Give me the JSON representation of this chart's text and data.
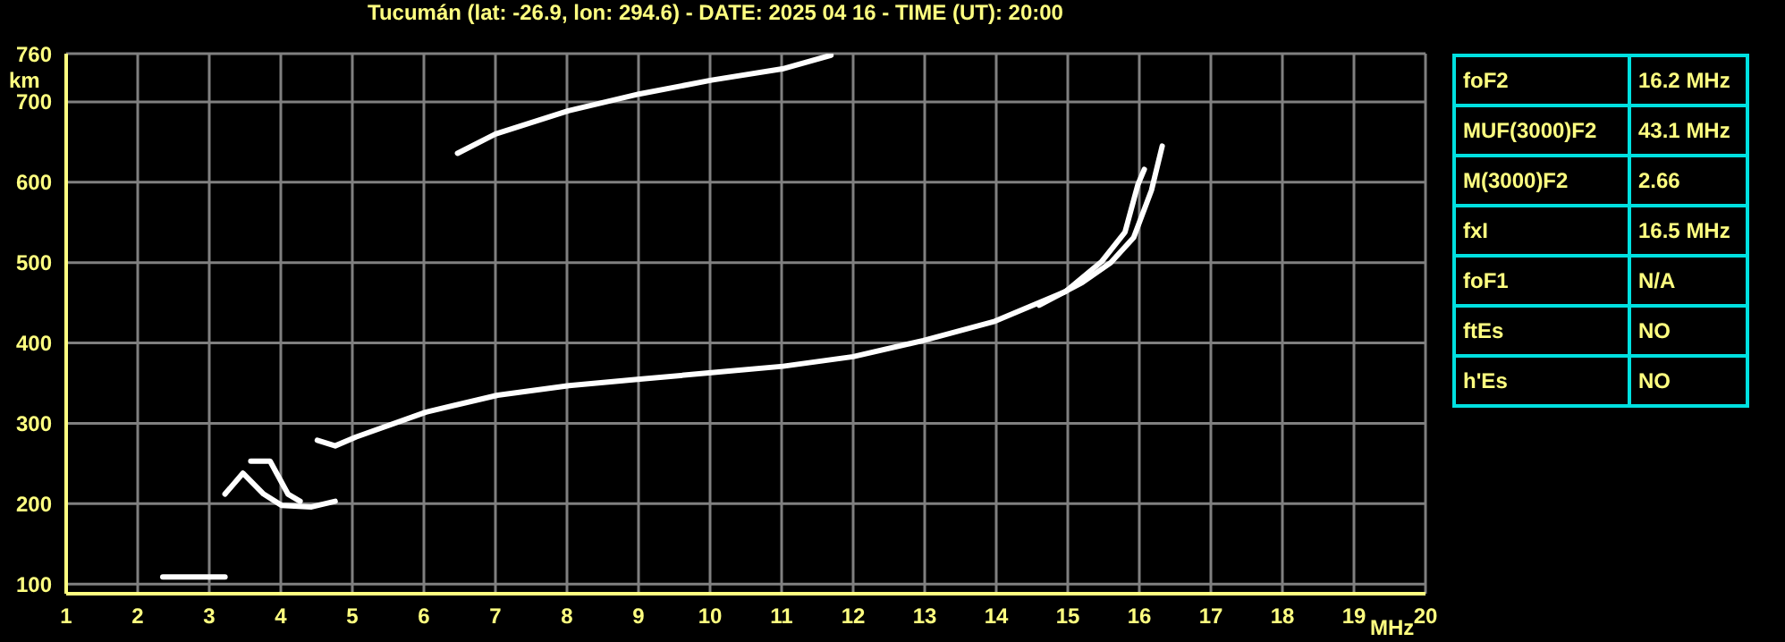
{
  "chart_data": [
    {
      "type": "line",
      "title": "Tucumán (lat: -26.9, lon: 294.6) - DATE: 2025 04 16 - TIME (UT): 20:00",
      "xlabel": "MHz",
      "ylabel": "km",
      "xlim": [
        1,
        20
      ],
      "xticks": [
        1,
        2,
        3,
        4,
        5,
        6,
        7,
        8,
        9,
        10,
        11,
        12,
        13,
        14,
        15,
        16,
        17,
        18,
        19,
        20
      ],
      "ylim": [
        88,
        760
      ],
      "yticks": [
        100,
        200,
        300,
        400,
        500,
        600,
        700,
        760
      ],
      "grid": true,
      "legend": false,
      "marker": "none",
      "line_style": "solid",
      "series": [
        {
          "color": "#ffffff",
          "x": [
            4.51,
            4.76,
            5.05,
            6.03,
            7.03,
            8.03,
            9.02,
            10.02,
            11.02,
            12.0,
            12.98,
            13.98,
            14.97,
            15.47,
            15.8,
            15.98,
            16.07
          ],
          "values": [
            279,
            272,
            283,
            314,
            335,
            347,
            355,
            363,
            371,
            383,
            403,
            427,
            464,
            501,
            538,
            597,
            616
          ]
        },
        {
          "color": "#ffffff",
          "x": [
            14.6,
            15.2,
            15.6,
            15.92,
            16.17,
            16.32
          ],
          "values": [
            447,
            475,
            500,
            531,
            590,
            645
          ]
        },
        {
          "color": "#ffffff",
          "x": [
            6.47,
            7.0,
            8.02,
            9.02,
            10.02,
            11.01,
            11.69
          ],
          "values": [
            636,
            660,
            689,
            710,
            727,
            741,
            758
          ]
        },
        {
          "color": "#ffffff",
          "x": [
            3.22,
            3.47,
            3.76,
            4.01,
            4.43,
            4.76
          ],
          "values": [
            212,
            238,
            212,
            198,
            196,
            203
          ]
        },
        {
          "color": "#ffffff",
          "x": [
            3.58,
            3.85,
            4.1,
            4.27
          ],
          "values": [
            253,
            253,
            212,
            203
          ]
        },
        {
          "color": "#ffffff",
          "x": [
            2.35,
            3.22
          ],
          "values": [
            109,
            109
          ]
        }
      ]
    },
    {
      "type": "other",
      "categories": [
        "foF2",
        "MUF(3000)F2",
        "M(3000)F2",
        "fxI",
        "foF1",
        "ftEs",
        "h'Es"
      ],
      "value_labels": [
        "16.2 MHz",
        "43.1 MHz",
        "2.66",
        "16.5 MHz",
        "N/A",
        "NO",
        "NO"
      ]
    }
  ]
}
